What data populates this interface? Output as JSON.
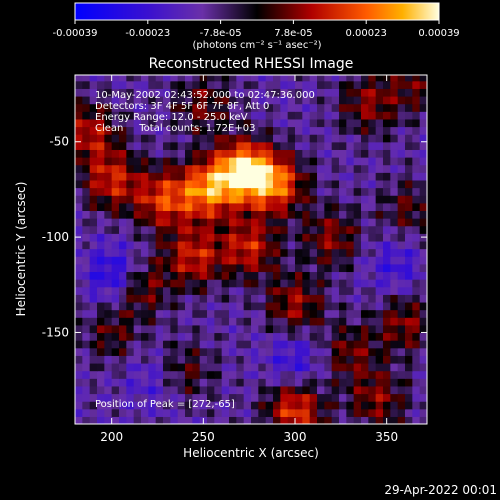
{
  "chart_data": {
    "type": "heatmap",
    "title": "Reconstructed RHESSI Image",
    "xlabel": "Heliocentric X (arcsec)",
    "ylabel": "Heliocentric Y (arcsec)",
    "xlim": [
      180,
      372
    ],
    "ylim": [
      -198,
      -15
    ],
    "xticks": [
      200,
      250,
      300,
      350
    ],
    "yticks": [
      -50,
      -100,
      -150
    ],
    "colorbar": {
      "ticks": [
        "-0.00039",
        "-0.00023",
        "-7.8e-05",
        "7.8e-05",
        "0.00023",
        "0.00039"
      ],
      "range": [
        -0.00039,
        0.00039
      ],
      "unit_label": "(photons cm⁻² s⁻¹ asec⁻²)"
    },
    "annotations": [
      "10-May-2002 02:43:52.000 to 02:47:36.000",
      "Detectors: 3F 4F 5F 6F 7F 8F, Att 0",
      "Energy Range: 12.0 - 25.0 keV",
      "Clean     Total counts: 1.72E+03"
    ],
    "peak_label": "Position of Peak = [272,-65]",
    "peak": [
      272,
      -65
    ],
    "sources": [
      {
        "x": 272,
        "y": -65,
        "v": 1.0
      },
      {
        "x": 252,
        "y": -75,
        "v": 0.75
      },
      {
        "x": 290,
        "y": -72,
        "v": 0.7
      },
      {
        "x": 228,
        "y": -80,
        "v": 0.6
      },
      {
        "x": 245,
        "y": -110,
        "v": 0.55
      },
      {
        "x": 275,
        "y": -105,
        "v": 0.55
      },
      {
        "x": 200,
        "y": -70,
        "v": 0.55
      },
      {
        "x": 188,
        "y": -45,
        "v": 0.5
      },
      {
        "x": 215,
        "y": -125,
        "v": 0.5
      },
      {
        "x": 300,
        "y": -135,
        "v": 0.45
      },
      {
        "x": 320,
        "y": -100,
        "v": 0.4
      },
      {
        "x": 340,
        "y": -30,
        "v": 0.4
      },
      {
        "x": 362,
        "y": -85,
        "v": 0.3
      },
      {
        "x": 330,
        "y": -160,
        "v": 0.35
      },
      {
        "x": 360,
        "y": -145,
        "v": 0.4
      },
      {
        "x": 300,
        "y": -190,
        "v": 0.65
      },
      {
        "x": 345,
        "y": -185,
        "v": 0.4
      },
      {
        "x": 240,
        "y": -170,
        "v": 0.3
      },
      {
        "x": 200,
        "y": -150,
        "v": 0.3
      },
      {
        "x": 250,
        "y": -30,
        "v": 0.35
      },
      {
        "x": 365,
        "y": -20,
        "v": 0.3
      },
      {
        "x": 203,
        "y": -120,
        "v": -0.5
      },
      {
        "x": 300,
        "y": -165,
        "v": -0.3
      },
      {
        "x": 355,
        "y": -115,
        "v": -0.25
      },
      {
        "x": 222,
        "y": -175,
        "v": -0.2
      }
    ]
  },
  "footer": {
    "timestamp": "29-Apr-2022 00:01"
  }
}
